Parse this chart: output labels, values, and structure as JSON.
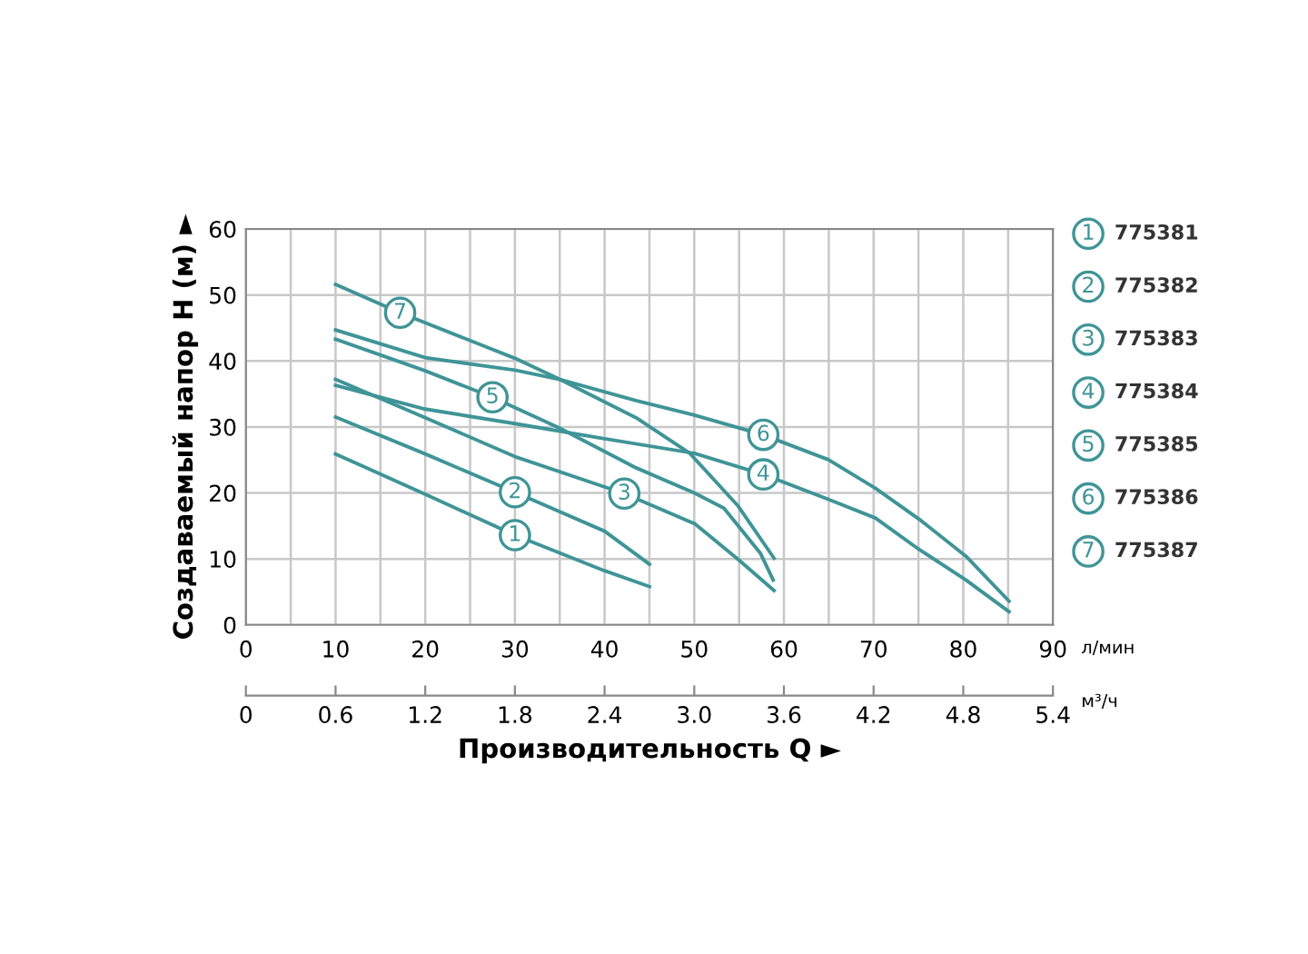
{
  "chart_data": {
    "type": "line",
    "xlabel": "Производительность Q ►",
    "ylabel": "Создаваемый напор H (м) ►",
    "x2label": null,
    "xlim": [
      0,
      90
    ],
    "xticks": [
      0,
      {
        "value": 5,
        "label": null
      },
      10,
      {
        "value": 15,
        "label": null
      },
      20,
      {
        "value": 25,
        "label": null
      },
      30,
      {
        "value": 35,
        "label": null
      },
      40,
      {
        "value": 45,
        "label": null
      },
      50,
      {
        "value": 55,
        "label": null
      },
      60,
      {
        "value": 65,
        "label": null
      },
      70,
      {
        "value": 75,
        "label": null
      },
      80,
      {
        "value": 85,
        "label": null
      },
      90
    ],
    "x2lim": [
      0,
      5.4
    ],
    "x2ticks": [
      0,
      0.6,
      1.2,
      1.8,
      2.4,
      {
        "value": 3,
        "label": "3.0"
      },
      3.6,
      4.2,
      4.8,
      5.4
    ],
    "ylim": [
      0,
      60
    ],
    "yticks": [
      0,
      10,
      20,
      30,
      40,
      50,
      60
    ],
    "grid": true,
    "legend": "right",
    "marker": "none",
    "line_style": "solid",
    "series": [
      {
        "name": "775381",
        "color": "#3f9497",
        "x": [
          10,
          20,
          30,
          40,
          45
        ],
        "values": [
          25.9,
          19.8,
          13.6,
          8.2,
          5.8
        ]
      },
      {
        "name": "775382",
        "color": "#3f9497",
        "x": [
          10,
          20,
          30,
          40,
          45
        ],
        "values": [
          31.5,
          25.9,
          20.1,
          14.2,
          9.2
        ]
      },
      {
        "name": "775383",
        "color": "#3f9497",
        "x": [
          10,
          20,
          30,
          42.2,
          50.1,
          54.9,
          58.9
        ],
        "values": [
          37.2,
          31.4,
          25.5,
          19.9,
          15.3,
          9.9,
          5.2
        ]
      },
      {
        "name": "775384",
        "color": "#3f9497",
        "x": [
          10,
          20,
          30,
          40,
          50,
          57.7,
          65,
          70.2,
          75,
          80.3,
          85.1
        ],
        "values": [
          36.3,
          32.7,
          30.5,
          28.2,
          26,
          22.8,
          19,
          16.2,
          11.5,
          6.8,
          2
        ]
      },
      {
        "name": "775385",
        "color": "#3f9497",
        "x": [
          10,
          20,
          27.5,
          35,
          43.5,
          50,
          53.3,
          57.4,
          58.8
        ],
        "values": [
          43.3,
          38.5,
          34.5,
          29.8,
          23.8,
          20,
          17.7,
          10.8,
          6.8
        ]
      },
      {
        "name": "775386",
        "color": "#3f9497",
        "x": [
          10,
          20,
          30,
          35,
          43.5,
          50,
          57.7,
          65,
          70.2,
          75.1,
          80.3,
          85.1
        ],
        "values": [
          44.7,
          40.5,
          38.6,
          37.2,
          34,
          31.8,
          28.8,
          25,
          20.7,
          16,
          10.4,
          3.6
        ]
      },
      {
        "name": "775387",
        "color": "#3f9497",
        "x": [
          10,
          17.2,
          30,
          35,
          43.5,
          49.5,
          54.9,
          58.9
        ],
        "values": [
          51.6,
          47.3,
          40.4,
          37.2,
          31.4,
          26,
          18,
          10.1
        ]
      }
    ],
    "annotations": [
      {
        "text": "1",
        "x": 30,
        "y": 13.6
      },
      {
        "text": "2",
        "x": 30,
        "y": 20.1
      },
      {
        "text": "3",
        "x": 42.2,
        "y": 19.9
      },
      {
        "text": "4",
        "x": 57.7,
        "y": 22.8
      },
      {
        "text": "5",
        "x": 27.5,
        "y": 34.5
      },
      {
        "text": "6",
        "x": 57.7,
        "y": 28.8
      },
      {
        "text": "7",
        "x": 17.2,
        "y": 47.3
      },
      "л/мин",
      "м³/ч"
    ]
  }
}
